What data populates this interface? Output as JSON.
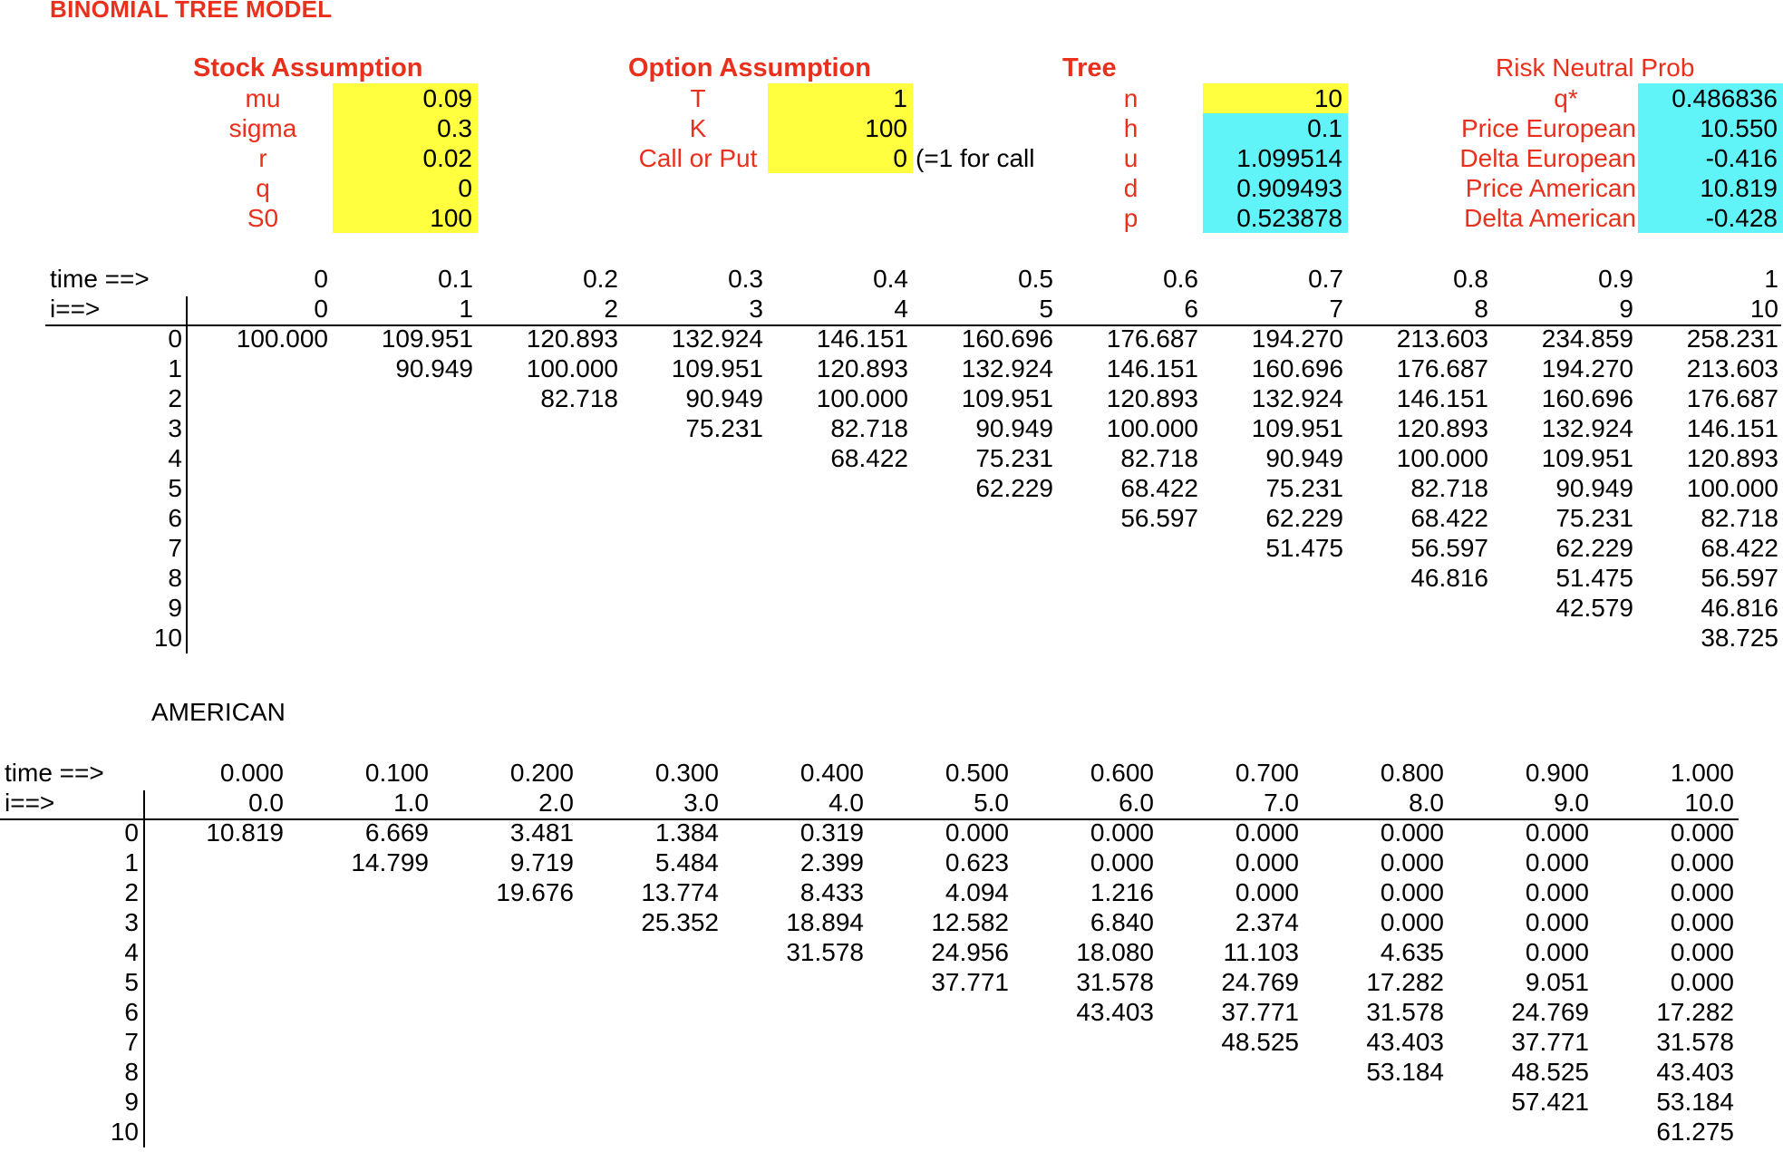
{
  "title": "BINOMIAL TREE MODEL",
  "stock": {
    "header": "Stock Assumption",
    "rows": [
      {
        "label": "mu",
        "value": "0.09"
      },
      {
        "label": "sigma",
        "value": "0.3"
      },
      {
        "label": "r",
        "value": "0.02"
      },
      {
        "label": "q",
        "value": "0"
      },
      {
        "label": "S0",
        "value": "100"
      }
    ]
  },
  "option": {
    "header": "Option Assumption",
    "rows": [
      {
        "label": "T",
        "value": "1"
      },
      {
        "label": "K",
        "value": "100"
      },
      {
        "label": "Call or Put",
        "value": "0"
      }
    ],
    "note": "(=1 for call"
  },
  "tree": {
    "header": "Tree",
    "rows": [
      {
        "label": "n",
        "value": "10"
      },
      {
        "label": "h",
        "value": "0.1"
      },
      {
        "label": "u",
        "value": "1.099514"
      },
      {
        "label": "d",
        "value": "0.909493"
      },
      {
        "label": "p",
        "value": "0.523878"
      }
    ]
  },
  "risk": {
    "header": "Risk Neutral Prob",
    "rows": [
      {
        "label": "q*",
        "value": "0.486836"
      },
      {
        "label": "Price European",
        "value": "10.550"
      },
      {
        "label": "Delta European",
        "value": "-0.416"
      },
      {
        "label": "Price American",
        "value": "10.819"
      },
      {
        "label": "Delta American",
        "value": "-0.428"
      }
    ]
  },
  "stock_tree": {
    "time_label": "time ==>",
    "i_label": "i==>",
    "times": [
      "0",
      "0.1",
      "0.2",
      "0.3",
      "0.4",
      "0.5",
      "0.6",
      "0.7",
      "0.8",
      "0.9",
      "1"
    ],
    "steps": [
      "0",
      "1",
      "2",
      "3",
      "4",
      "5",
      "6",
      "7",
      "8",
      "9",
      "10"
    ],
    "row_labels": [
      "0",
      "1",
      "2",
      "3",
      "4",
      "5",
      "6",
      "7",
      "8",
      "9",
      "10"
    ],
    "rows": [
      [
        "100.000",
        "109.951",
        "120.893",
        "132.924",
        "146.151",
        "160.696",
        "176.687",
        "194.270",
        "213.603",
        "234.859",
        "258.231"
      ],
      [
        "",
        "90.949",
        "100.000",
        "109.951",
        "120.893",
        "132.924",
        "146.151",
        "160.696",
        "176.687",
        "194.270",
        "213.603"
      ],
      [
        "",
        "",
        "82.718",
        "90.949",
        "100.000",
        "109.951",
        "120.893",
        "132.924",
        "146.151",
        "160.696",
        "176.687"
      ],
      [
        "",
        "",
        "",
        "75.231",
        "82.718",
        "90.949",
        "100.000",
        "109.951",
        "120.893",
        "132.924",
        "146.151"
      ],
      [
        "",
        "",
        "",
        "",
        "68.422",
        "75.231",
        "82.718",
        "90.949",
        "100.000",
        "109.951",
        "120.893"
      ],
      [
        "",
        "",
        "",
        "",
        "",
        "62.229",
        "68.422",
        "75.231",
        "82.718",
        "90.949",
        "100.000"
      ],
      [
        "",
        "",
        "",
        "",
        "",
        "",
        "56.597",
        "62.229",
        "68.422",
        "75.231",
        "82.718"
      ],
      [
        "",
        "",
        "",
        "",
        "",
        "",
        "",
        "51.475",
        "56.597",
        "62.229",
        "68.422"
      ],
      [
        "",
        "",
        "",
        "",
        "",
        "",
        "",
        "",
        "46.816",
        "51.475",
        "56.597"
      ],
      [
        "",
        "",
        "",
        "",
        "",
        "",
        "",
        "",
        "",
        "42.579",
        "46.816"
      ],
      [
        "",
        "",
        "",
        "",
        "",
        "",
        "",
        "",
        "",
        "",
        "38.725"
      ]
    ]
  },
  "american_label": "AMERICAN",
  "american_tree": {
    "time_label": "time ==>",
    "i_label": "i==>",
    "times": [
      "0.000",
      "0.100",
      "0.200",
      "0.300",
      "0.400",
      "0.500",
      "0.600",
      "0.700",
      "0.800",
      "0.900",
      "1.000"
    ],
    "steps": [
      "0.0",
      "1.0",
      "2.0",
      "3.0",
      "4.0",
      "5.0",
      "6.0",
      "7.0",
      "8.0",
      "9.0",
      "10.0"
    ],
    "row_labels": [
      "0",
      "1",
      "2",
      "3",
      "4",
      "5",
      "6",
      "7",
      "8",
      "9",
      "10"
    ],
    "rows": [
      [
        "10.819",
        "6.669",
        "3.481",
        "1.384",
        "0.319",
        "0.000",
        "0.000",
        "0.000",
        "0.000",
        "0.000",
        "0.000"
      ],
      [
        "",
        "14.799",
        "9.719",
        "5.484",
        "2.399",
        "0.623",
        "0.000",
        "0.000",
        "0.000",
        "0.000",
        "0.000"
      ],
      [
        "",
        "",
        "19.676",
        "13.774",
        "8.433",
        "4.094",
        "1.216",
        "0.000",
        "0.000",
        "0.000",
        "0.000"
      ],
      [
        "",
        "",
        "",
        "25.352",
        "18.894",
        "12.582",
        "6.840",
        "2.374",
        "0.000",
        "0.000",
        "0.000"
      ],
      [
        "",
        "",
        "",
        "",
        "31.578",
        "24.956",
        "18.080",
        "11.103",
        "4.635",
        "0.000",
        "0.000"
      ],
      [
        "",
        "",
        "",
        "",
        "",
        "37.771",
        "31.578",
        "24.769",
        "17.282",
        "9.051",
        "0.000"
      ],
      [
        "",
        "",
        "",
        "",
        "",
        "",
        "43.403",
        "37.771",
        "31.578",
        "24.769",
        "17.282"
      ],
      [
        "",
        "",
        "",
        "",
        "",
        "",
        "",
        "48.525",
        "43.403",
        "37.771",
        "31.578"
      ],
      [
        "",
        "",
        "",
        "",
        "",
        "",
        "",
        "",
        "53.184",
        "48.525",
        "43.403"
      ],
      [
        "",
        "",
        "",
        "",
        "",
        "",
        "",
        "",
        "",
        "57.421",
        "53.184"
      ],
      [
        "",
        "",
        "",
        "",
        "",
        "",
        "",
        "",
        "",
        "",
        "61.275"
      ]
    ]
  },
  "colors": {
    "accent_red": "#e8301c",
    "input_yellow": "#ffff40",
    "output_cyan": "#60f4f8"
  }
}
